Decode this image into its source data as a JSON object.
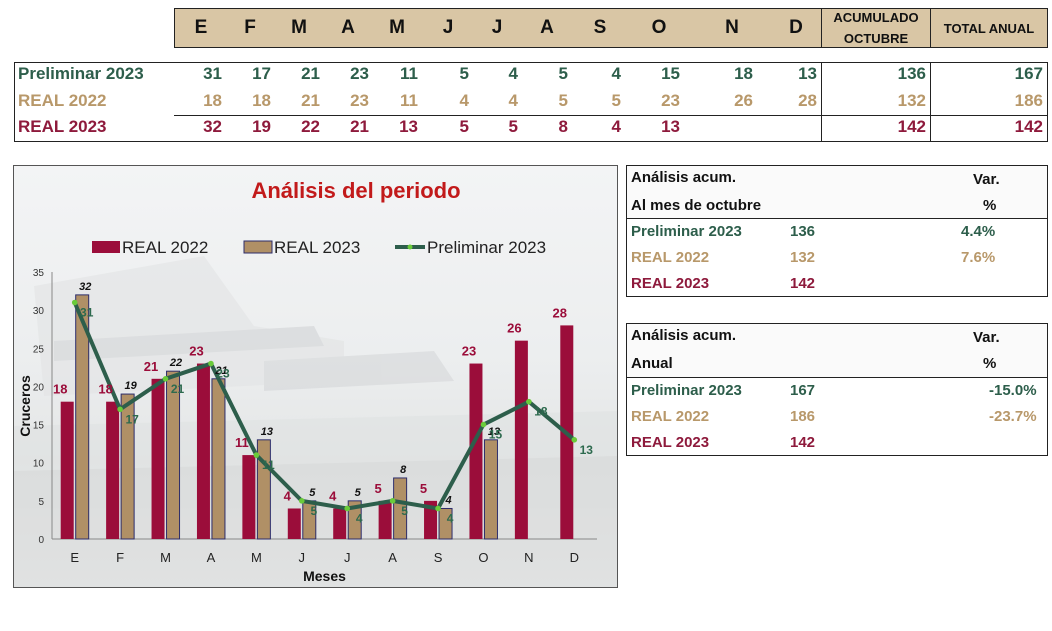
{
  "months": [
    "E",
    "F",
    "M",
    "A",
    "M",
    "J",
    "J",
    "A",
    "S",
    "O",
    "N",
    "D"
  ],
  "header": {
    "acum_line1": "ACUMULADO",
    "acum_line2": "OCTUBRE",
    "total": "TOTAL ANUAL"
  },
  "rows": [
    {
      "label": "Preliminar 2023",
      "values": [
        "31",
        "17",
        "21",
        "23",
        "11",
        "5",
        "4",
        "5",
        "4",
        "15",
        "18",
        "13"
      ],
      "acum": "136",
      "total": "167",
      "color": "#2d5e4b"
    },
    {
      "label": "REAL 2022",
      "values": [
        "18",
        "18",
        "21",
        "23",
        "11",
        "4",
        "4",
        "5",
        "5",
        "23",
        "26",
        "28"
      ],
      "acum": "132",
      "total": "186",
      "color": "#b8986a"
    },
    {
      "label": "REAL 2023",
      "values": [
        "32",
        "19",
        "22",
        "21",
        "13",
        "5",
        "5",
        "8",
        "4",
        "13",
        "",
        ""
      ],
      "acum": "142",
      "total": "142",
      "color": "#8e1a3c"
    }
  ],
  "chart_data": {
    "type": "bar",
    "title": "Análisis del periodo",
    "xlabel": "Meses",
    "ylabel": "Cruceros",
    "ylim": [
      0,
      35
    ],
    "yticks": [
      0,
      5,
      10,
      15,
      20,
      25,
      30,
      35
    ],
    "categories": [
      "E",
      "F",
      "M",
      "A",
      "M",
      "J",
      "J",
      "A",
      "S",
      "O",
      "N",
      "D"
    ],
    "legend_position": "top",
    "series": [
      {
        "name": "REAL 2022",
        "kind": "bar",
        "color": "#9b0d3a",
        "values": [
          18,
          18,
          21,
          23,
          11,
          4,
          4,
          5,
          5,
          23,
          26,
          28
        ]
      },
      {
        "name": "REAL 2023",
        "kind": "bar",
        "color": "#b09066",
        "values": [
          32,
          19,
          22,
          21,
          13,
          5,
          5,
          8,
          4,
          13,
          null,
          null
        ]
      },
      {
        "name": "Preliminar 2023",
        "kind": "line",
        "color": "#2d5e4b",
        "values": [
          31,
          17,
          21,
          23,
          11,
          5,
          4,
          5,
          4,
          15,
          18,
          13
        ]
      }
    ]
  },
  "analysis_acum": {
    "title1": "Análisis acum.",
    "title2": "Al mes de octubre",
    "var1": "Var.",
    "var2": "%",
    "rows": [
      {
        "label": "Preliminar 2023",
        "value": "136",
        "var": "4.4%"
      },
      {
        "label": "REAL 2022",
        "value": "132",
        "var": "7.6%"
      },
      {
        "label": "REAL 2023",
        "value": "142",
        "var": ""
      }
    ]
  },
  "analysis_anual": {
    "title1": "Análisis acum.",
    "title2": "Anual",
    "var1": "Var.",
    "var2": "%",
    "rows": [
      {
        "label": "Preliminar 2023",
        "value": "167",
        "var": "-15.0%"
      },
      {
        "label": "REAL 2022",
        "value": "186",
        "var": "-23.7%"
      },
      {
        "label": "REAL 2023",
        "value": "142",
        "var": ""
      }
    ]
  }
}
